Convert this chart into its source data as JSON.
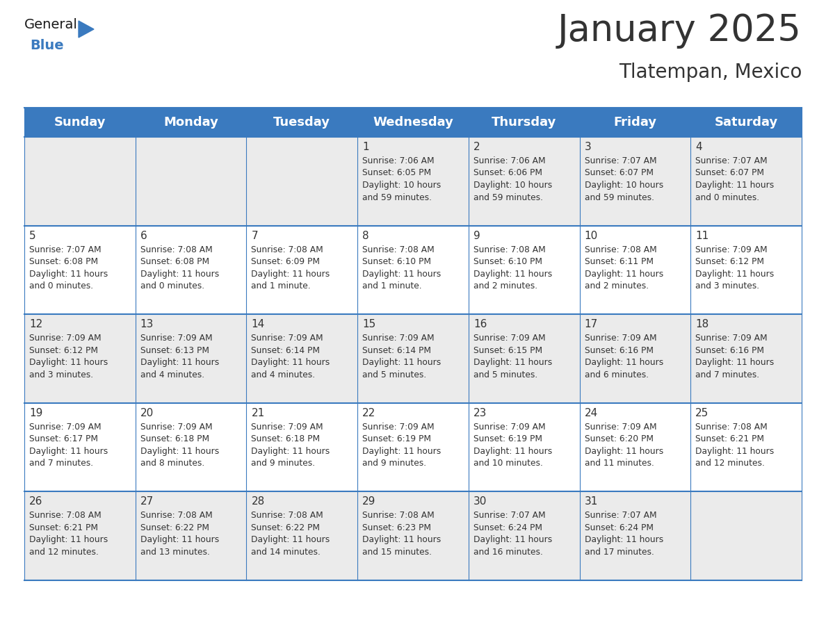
{
  "title": "January 2025",
  "subtitle": "Tlatempan, Mexico",
  "header_color": "#3a7abf",
  "header_text_color": "#ffffff",
  "cell_bg_even": "#ebebeb",
  "cell_bg_odd": "#ffffff",
  "day_headers": [
    "Sunday",
    "Monday",
    "Tuesday",
    "Wednesday",
    "Thursday",
    "Friday",
    "Saturday"
  ],
  "title_fontsize": 38,
  "subtitle_fontsize": 20,
  "header_fontsize": 13,
  "cell_day_fontsize": 11,
  "cell_text_fontsize": 8.8,
  "weeks": [
    [
      {
        "day": "",
        "text": ""
      },
      {
        "day": "",
        "text": ""
      },
      {
        "day": "",
        "text": ""
      },
      {
        "day": "1",
        "text": "Sunrise: 7:06 AM\nSunset: 6:05 PM\nDaylight: 10 hours\nand 59 minutes."
      },
      {
        "day": "2",
        "text": "Sunrise: 7:06 AM\nSunset: 6:06 PM\nDaylight: 10 hours\nand 59 minutes."
      },
      {
        "day": "3",
        "text": "Sunrise: 7:07 AM\nSunset: 6:07 PM\nDaylight: 10 hours\nand 59 minutes."
      },
      {
        "day": "4",
        "text": "Sunrise: 7:07 AM\nSunset: 6:07 PM\nDaylight: 11 hours\nand 0 minutes."
      }
    ],
    [
      {
        "day": "5",
        "text": "Sunrise: 7:07 AM\nSunset: 6:08 PM\nDaylight: 11 hours\nand 0 minutes."
      },
      {
        "day": "6",
        "text": "Sunrise: 7:08 AM\nSunset: 6:08 PM\nDaylight: 11 hours\nand 0 minutes."
      },
      {
        "day": "7",
        "text": "Sunrise: 7:08 AM\nSunset: 6:09 PM\nDaylight: 11 hours\nand 1 minute."
      },
      {
        "day": "8",
        "text": "Sunrise: 7:08 AM\nSunset: 6:10 PM\nDaylight: 11 hours\nand 1 minute."
      },
      {
        "day": "9",
        "text": "Sunrise: 7:08 AM\nSunset: 6:10 PM\nDaylight: 11 hours\nand 2 minutes."
      },
      {
        "day": "10",
        "text": "Sunrise: 7:08 AM\nSunset: 6:11 PM\nDaylight: 11 hours\nand 2 minutes."
      },
      {
        "day": "11",
        "text": "Sunrise: 7:09 AM\nSunset: 6:12 PM\nDaylight: 11 hours\nand 3 minutes."
      }
    ],
    [
      {
        "day": "12",
        "text": "Sunrise: 7:09 AM\nSunset: 6:12 PM\nDaylight: 11 hours\nand 3 minutes."
      },
      {
        "day": "13",
        "text": "Sunrise: 7:09 AM\nSunset: 6:13 PM\nDaylight: 11 hours\nand 4 minutes."
      },
      {
        "day": "14",
        "text": "Sunrise: 7:09 AM\nSunset: 6:14 PM\nDaylight: 11 hours\nand 4 minutes."
      },
      {
        "day": "15",
        "text": "Sunrise: 7:09 AM\nSunset: 6:14 PM\nDaylight: 11 hours\nand 5 minutes."
      },
      {
        "day": "16",
        "text": "Sunrise: 7:09 AM\nSunset: 6:15 PM\nDaylight: 11 hours\nand 5 minutes."
      },
      {
        "day": "17",
        "text": "Sunrise: 7:09 AM\nSunset: 6:16 PM\nDaylight: 11 hours\nand 6 minutes."
      },
      {
        "day": "18",
        "text": "Sunrise: 7:09 AM\nSunset: 6:16 PM\nDaylight: 11 hours\nand 7 minutes."
      }
    ],
    [
      {
        "day": "19",
        "text": "Sunrise: 7:09 AM\nSunset: 6:17 PM\nDaylight: 11 hours\nand 7 minutes."
      },
      {
        "day": "20",
        "text": "Sunrise: 7:09 AM\nSunset: 6:18 PM\nDaylight: 11 hours\nand 8 minutes."
      },
      {
        "day": "21",
        "text": "Sunrise: 7:09 AM\nSunset: 6:18 PM\nDaylight: 11 hours\nand 9 minutes."
      },
      {
        "day": "22",
        "text": "Sunrise: 7:09 AM\nSunset: 6:19 PM\nDaylight: 11 hours\nand 9 minutes."
      },
      {
        "day": "23",
        "text": "Sunrise: 7:09 AM\nSunset: 6:19 PM\nDaylight: 11 hours\nand 10 minutes."
      },
      {
        "day": "24",
        "text": "Sunrise: 7:09 AM\nSunset: 6:20 PM\nDaylight: 11 hours\nand 11 minutes."
      },
      {
        "day": "25",
        "text": "Sunrise: 7:08 AM\nSunset: 6:21 PM\nDaylight: 11 hours\nand 12 minutes."
      }
    ],
    [
      {
        "day": "26",
        "text": "Sunrise: 7:08 AM\nSunset: 6:21 PM\nDaylight: 11 hours\nand 12 minutes."
      },
      {
        "day": "27",
        "text": "Sunrise: 7:08 AM\nSunset: 6:22 PM\nDaylight: 11 hours\nand 13 minutes."
      },
      {
        "day": "28",
        "text": "Sunrise: 7:08 AM\nSunset: 6:22 PM\nDaylight: 11 hours\nand 14 minutes."
      },
      {
        "day": "29",
        "text": "Sunrise: 7:08 AM\nSunset: 6:23 PM\nDaylight: 11 hours\nand 15 minutes."
      },
      {
        "day": "30",
        "text": "Sunrise: 7:07 AM\nSunset: 6:24 PM\nDaylight: 11 hours\nand 16 minutes."
      },
      {
        "day": "31",
        "text": "Sunrise: 7:07 AM\nSunset: 6:24 PM\nDaylight: 11 hours\nand 17 minutes."
      },
      {
        "day": "",
        "text": ""
      }
    ]
  ],
  "line_color": "#3a7abf",
  "text_color": "#333333",
  "logo_general_color": "#1a1a1a",
  "logo_blue_color": "#3a7abf"
}
